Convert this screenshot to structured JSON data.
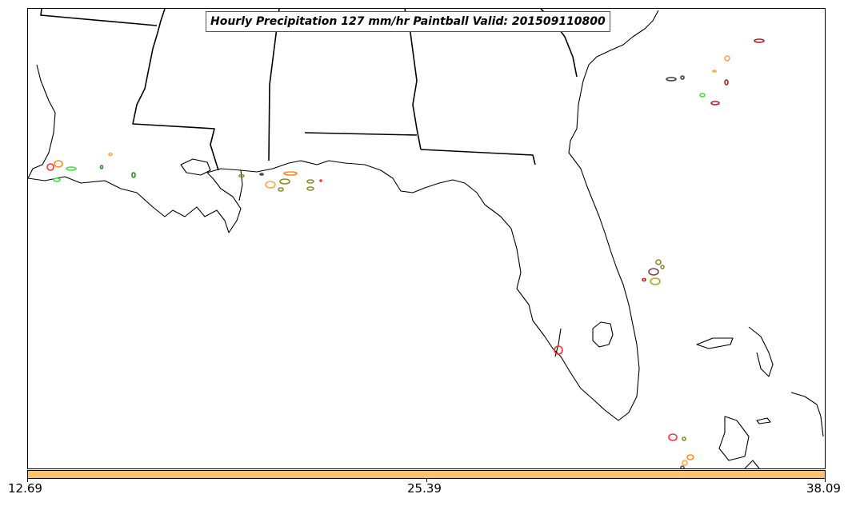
{
  "title": "Hourly Precipitation 127 mm/hr Paintball Valid: 201509110800",
  "colorbar": {
    "color": "#ffc466",
    "ticks": [
      "12.69",
      "25.39",
      "38.09"
    ]
  },
  "paintball_colors": [
    "#ff8c1a",
    "#ffa64d",
    "#44dd44",
    "#2e8b2e",
    "#8b8b2e",
    "#b22222",
    "#ff3333",
    "#8b4040",
    "#404040",
    "#aaaa22"
  ]
}
